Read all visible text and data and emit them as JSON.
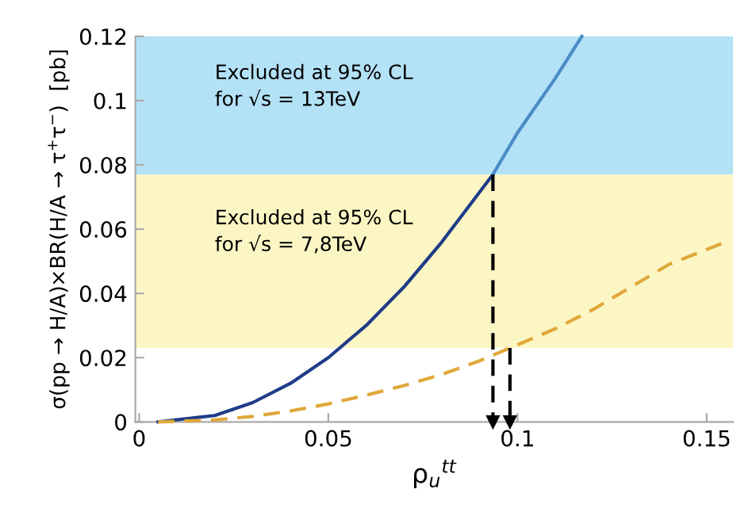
{
  "chart_data": {
    "type": "line",
    "xlabel": "ρ$_{u}$$^{tt}$",
    "ylabel": "σ(pp → H/A)×BR(H/A → τ$^{+}$τ$^{−}$)  [pb]",
    "xlim": [
      -0.001,
      0.157
    ],
    "ylim": [
      0,
      0.12
    ],
    "xticks": [
      0,
      0.05,
      0.1,
      0.15
    ],
    "yticks": [
      0,
      0.02,
      0.04,
      0.06,
      0.08,
      0.1,
      0.12
    ],
    "grid": false,
    "legend": false,
    "bands": [
      {
        "axis": "y",
        "from": 0.077,
        "to": 0.12,
        "color": "#b3e1f6",
        "label": "Excluded at 95% CL\nfor √s = 13TeV"
      },
      {
        "axis": "y",
        "from": 0.023,
        "to": 0.077,
        "color": "#fbf6c4",
        "label": "Excluded at 95% CL\nfor √s = 7,8TeV"
      }
    ],
    "series": [
      {
        "color": "#1f3c88",
        "line_style": "solid",
        "x": [
          0.005,
          0.02,
          0.03,
          0.04,
          0.05,
          0.06,
          0.07,
          0.08,
          0.0935
        ],
        "values": [
          0,
          0.002,
          0.006,
          0.012,
          0.02,
          0.03,
          0.042,
          0.056,
          0.077
        ]
      },
      {
        "color": "#4a8cc8",
        "line_style": "solid",
        "x": [
          0.0935,
          0.1,
          0.11,
          0.117
        ],
        "values": [
          0.077,
          0.09,
          0.107,
          0.12
        ]
      },
      {
        "color": "#e0a83a",
        "line_style": "dashed",
        "x": [
          0.005,
          0.02,
          0.03,
          0.04,
          0.05,
          0.06,
          0.07,
          0.08,
          0.09,
          0.098,
          0.11,
          0.12,
          0.13,
          0.14,
          0.155
        ],
        "values": [
          0,
          0.0006,
          0.0017,
          0.0034,
          0.0056,
          0.0083,
          0.0113,
          0.0148,
          0.019,
          0.023,
          0.029,
          0.035,
          0.042,
          0.049,
          0.056
        ]
      },
      {
        "color": "#000000",
        "line_style": "dashed",
        "marker": "triangle",
        "x": [
          0.0935,
          0.0935
        ],
        "values": [
          0.077,
          0
        ]
      },
      {
        "color": "#000000",
        "line_style": "dashed",
        "marker": "triangle",
        "x": [
          0.098,
          0.098
        ],
        "values": [
          0.023,
          0
        ]
      }
    ]
  }
}
